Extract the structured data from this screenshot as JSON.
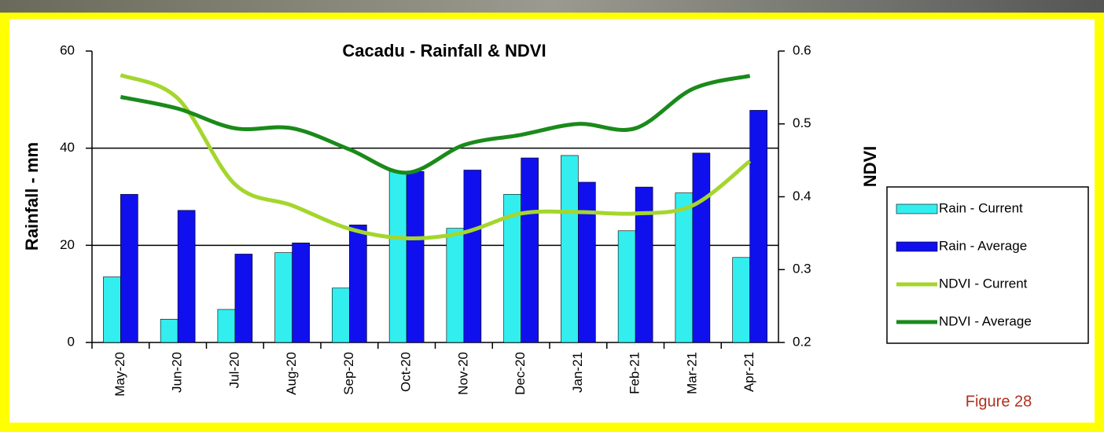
{
  "chart_data": {
    "type": "bar-line",
    "title": "Cacadu - Rainfall  & NDVI",
    "y_label": "Rainfall - mm",
    "y2_label": "NDVI",
    "figure_label": "Figure 28",
    "categories": [
      "May-20",
      "Jun-20",
      "Jul-20",
      "Aug-20",
      "Sep-20",
      "Oct-20",
      "Nov-20",
      "Dec-20",
      "Jan-21",
      "Feb-21",
      "Mar-21",
      "Apr-21"
    ],
    "series": [
      {
        "name": "Rain - Current",
        "kind": "bar",
        "color": "#33eeee",
        "values": [
          13.5,
          4.8,
          6.8,
          18.5,
          11.2,
          35.2,
          23.5,
          30.5,
          38.5,
          23,
          30.8,
          17.5
        ]
      },
      {
        "name": "Rain - Average",
        "kind": "bar",
        "color": "#1010ee",
        "values": [
          30.5,
          27.2,
          18.2,
          20.5,
          24.2,
          35.2,
          35.5,
          38,
          33,
          32,
          39,
          47.8
        ]
      },
      {
        "name": "NDVI - Current",
        "kind": "line",
        "axis": "y2",
        "color": "#a4d62c",
        "values": [
          0.567,
          0.535,
          0.417,
          0.388,
          0.356,
          0.343,
          0.351,
          0.377,
          0.379,
          0.377,
          0.388,
          0.449
        ]
      },
      {
        "name": "NDVI - Average",
        "kind": "line",
        "axis": "y2",
        "color": "#1a8a1a",
        "values": [
          0.537,
          0.521,
          0.494,
          0.494,
          0.465,
          0.433,
          0.471,
          0.485,
          0.5,
          0.494,
          0.548,
          0.566
        ]
      }
    ],
    "ylim": [
      0,
      60
    ],
    "yticks": [
      0,
      20,
      40,
      60
    ],
    "y2lim": [
      0.2,
      0.6
    ],
    "y2ticks": [
      0.2,
      0.3,
      0.4,
      0.5,
      0.6
    ],
    "grid": true,
    "legend": "right"
  }
}
